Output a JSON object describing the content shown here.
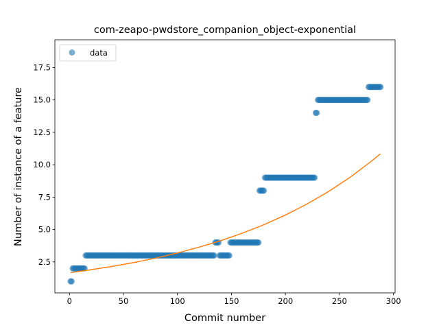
{
  "chart_data": {
    "type": "scatter",
    "title": "com-zeapo-pwdstore_companion_object-exponential",
    "xlabel": "Commit number",
    "ylabel": "Number of instance of a feature",
    "xlim": [
      -13.5,
      301.5
    ],
    "ylim": [
      0.11,
      19.64
    ],
    "grid": false,
    "legend": {
      "placement": "upper-left",
      "entries": [
        "data"
      ]
    },
    "xticks": [
      0,
      50,
      100,
      150,
      200,
      250,
      300
    ],
    "xtick_labels": [
      "0",
      "50",
      "100",
      "150",
      "200",
      "250",
      "300"
    ],
    "yticks": [
      2.5,
      5.0,
      7.5,
      10.0,
      12.5,
      15.0,
      17.5
    ],
    "ytick_labels": [
      "2.5",
      "5.0",
      "7.5",
      "10.0",
      "12.5",
      "15.0",
      "17.5"
    ],
    "series": [
      {
        "name": "data",
        "kind": "points",
        "color": "#1f77b4",
        "segments": [
          {
            "x_start": 1,
            "x_end": 2,
            "y": 1
          },
          {
            "x_start": 3,
            "x_end": 14,
            "y": 2
          },
          {
            "x_start": 15,
            "x_end": 134,
            "y": 3
          },
          {
            "x_start": 135,
            "x_end": 138,
            "y": 4
          },
          {
            "x_start": 139,
            "x_end": 148,
            "y": 3
          },
          {
            "x_start": 149,
            "x_end": 175,
            "y": 4
          },
          {
            "x_start": 176,
            "x_end": 180,
            "y": 8
          },
          {
            "x_start": 181,
            "x_end": 227,
            "y": 9
          },
          {
            "x_start": 228,
            "x_end": 229,
            "y": 14
          },
          {
            "x_start": 230,
            "x_end": 276,
            "y": 15
          },
          {
            "x_start": 277,
            "x_end": 288,
            "y": 16
          }
        ]
      },
      {
        "kind": "fit-line",
        "color": "#ff7f0e",
        "x": [
          1,
          20,
          40,
          60,
          80,
          100,
          120,
          140,
          160,
          180,
          200,
          220,
          240,
          260,
          280,
          288
        ],
        "y": [
          1.68,
          1.9,
          2.16,
          2.46,
          2.8,
          3.19,
          3.64,
          4.14,
          4.72,
          5.37,
          6.12,
          6.97,
          7.94,
          9.04,
          10.3,
          10.85
        ]
      }
    ]
  }
}
